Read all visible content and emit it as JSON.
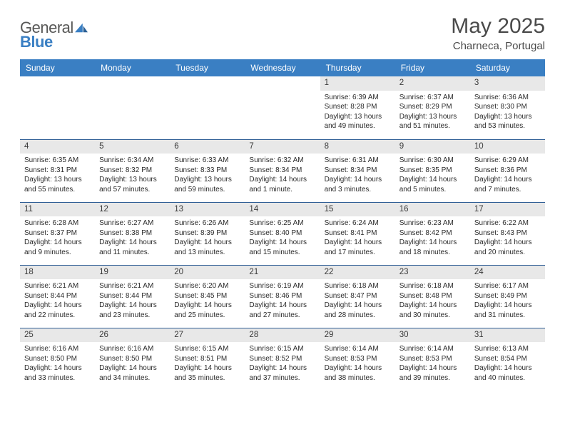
{
  "logo": {
    "text1": "General",
    "text2": "Blue"
  },
  "title": "May 2025",
  "subtitle": "Charneca, Portugal",
  "colors": {
    "header_bg": "#3a7fc3",
    "header_text": "#ffffff",
    "row_border": "#2f5e95",
    "daynum_bg": "#e8e8e8",
    "logo_gray": "#575756",
    "logo_blue": "#3a7fc3"
  },
  "day_headers": [
    "Sunday",
    "Monday",
    "Tuesday",
    "Wednesday",
    "Thursday",
    "Friday",
    "Saturday"
  ],
  "weeks": [
    [
      null,
      null,
      null,
      null,
      {
        "n": "1",
        "sunrise": "6:39 AM",
        "sunset": "8:28 PM",
        "dl1": "Daylight: 13 hours",
        "dl2": "and 49 minutes."
      },
      {
        "n": "2",
        "sunrise": "6:37 AM",
        "sunset": "8:29 PM",
        "dl1": "Daylight: 13 hours",
        "dl2": "and 51 minutes."
      },
      {
        "n": "3",
        "sunrise": "6:36 AM",
        "sunset": "8:30 PM",
        "dl1": "Daylight: 13 hours",
        "dl2": "and 53 minutes."
      }
    ],
    [
      {
        "n": "4",
        "sunrise": "6:35 AM",
        "sunset": "8:31 PM",
        "dl1": "Daylight: 13 hours",
        "dl2": "and 55 minutes."
      },
      {
        "n": "5",
        "sunrise": "6:34 AM",
        "sunset": "8:32 PM",
        "dl1": "Daylight: 13 hours",
        "dl2": "and 57 minutes."
      },
      {
        "n": "6",
        "sunrise": "6:33 AM",
        "sunset": "8:33 PM",
        "dl1": "Daylight: 13 hours",
        "dl2": "and 59 minutes."
      },
      {
        "n": "7",
        "sunrise": "6:32 AM",
        "sunset": "8:34 PM",
        "dl1": "Daylight: 14 hours",
        "dl2": "and 1 minute."
      },
      {
        "n": "8",
        "sunrise": "6:31 AM",
        "sunset": "8:34 PM",
        "dl1": "Daylight: 14 hours",
        "dl2": "and 3 minutes."
      },
      {
        "n": "9",
        "sunrise": "6:30 AM",
        "sunset": "8:35 PM",
        "dl1": "Daylight: 14 hours",
        "dl2": "and 5 minutes."
      },
      {
        "n": "10",
        "sunrise": "6:29 AM",
        "sunset": "8:36 PM",
        "dl1": "Daylight: 14 hours",
        "dl2": "and 7 minutes."
      }
    ],
    [
      {
        "n": "11",
        "sunrise": "6:28 AM",
        "sunset": "8:37 PM",
        "dl1": "Daylight: 14 hours",
        "dl2": "and 9 minutes."
      },
      {
        "n": "12",
        "sunrise": "6:27 AM",
        "sunset": "8:38 PM",
        "dl1": "Daylight: 14 hours",
        "dl2": "and 11 minutes."
      },
      {
        "n": "13",
        "sunrise": "6:26 AM",
        "sunset": "8:39 PM",
        "dl1": "Daylight: 14 hours",
        "dl2": "and 13 minutes."
      },
      {
        "n": "14",
        "sunrise": "6:25 AM",
        "sunset": "8:40 PM",
        "dl1": "Daylight: 14 hours",
        "dl2": "and 15 minutes."
      },
      {
        "n": "15",
        "sunrise": "6:24 AM",
        "sunset": "8:41 PM",
        "dl1": "Daylight: 14 hours",
        "dl2": "and 17 minutes."
      },
      {
        "n": "16",
        "sunrise": "6:23 AM",
        "sunset": "8:42 PM",
        "dl1": "Daylight: 14 hours",
        "dl2": "and 18 minutes."
      },
      {
        "n": "17",
        "sunrise": "6:22 AM",
        "sunset": "8:43 PM",
        "dl1": "Daylight: 14 hours",
        "dl2": "and 20 minutes."
      }
    ],
    [
      {
        "n": "18",
        "sunrise": "6:21 AM",
        "sunset": "8:44 PM",
        "dl1": "Daylight: 14 hours",
        "dl2": "and 22 minutes."
      },
      {
        "n": "19",
        "sunrise": "6:21 AM",
        "sunset": "8:44 PM",
        "dl1": "Daylight: 14 hours",
        "dl2": "and 23 minutes."
      },
      {
        "n": "20",
        "sunrise": "6:20 AM",
        "sunset": "8:45 PM",
        "dl1": "Daylight: 14 hours",
        "dl2": "and 25 minutes."
      },
      {
        "n": "21",
        "sunrise": "6:19 AM",
        "sunset": "8:46 PM",
        "dl1": "Daylight: 14 hours",
        "dl2": "and 27 minutes."
      },
      {
        "n": "22",
        "sunrise": "6:18 AM",
        "sunset": "8:47 PM",
        "dl1": "Daylight: 14 hours",
        "dl2": "and 28 minutes."
      },
      {
        "n": "23",
        "sunrise": "6:18 AM",
        "sunset": "8:48 PM",
        "dl1": "Daylight: 14 hours",
        "dl2": "and 30 minutes."
      },
      {
        "n": "24",
        "sunrise": "6:17 AM",
        "sunset": "8:49 PM",
        "dl1": "Daylight: 14 hours",
        "dl2": "and 31 minutes."
      }
    ],
    [
      {
        "n": "25",
        "sunrise": "6:16 AM",
        "sunset": "8:50 PM",
        "dl1": "Daylight: 14 hours",
        "dl2": "and 33 minutes."
      },
      {
        "n": "26",
        "sunrise": "6:16 AM",
        "sunset": "8:50 PM",
        "dl1": "Daylight: 14 hours",
        "dl2": "and 34 minutes."
      },
      {
        "n": "27",
        "sunrise": "6:15 AM",
        "sunset": "8:51 PM",
        "dl1": "Daylight: 14 hours",
        "dl2": "and 35 minutes."
      },
      {
        "n": "28",
        "sunrise": "6:15 AM",
        "sunset": "8:52 PM",
        "dl1": "Daylight: 14 hours",
        "dl2": "and 37 minutes."
      },
      {
        "n": "29",
        "sunrise": "6:14 AM",
        "sunset": "8:53 PM",
        "dl1": "Daylight: 14 hours",
        "dl2": "and 38 minutes."
      },
      {
        "n": "30",
        "sunrise": "6:14 AM",
        "sunset": "8:53 PM",
        "dl1": "Daylight: 14 hours",
        "dl2": "and 39 minutes."
      },
      {
        "n": "31",
        "sunrise": "6:13 AM",
        "sunset": "8:54 PM",
        "dl1": "Daylight: 14 hours",
        "dl2": "and 40 minutes."
      }
    ]
  ]
}
